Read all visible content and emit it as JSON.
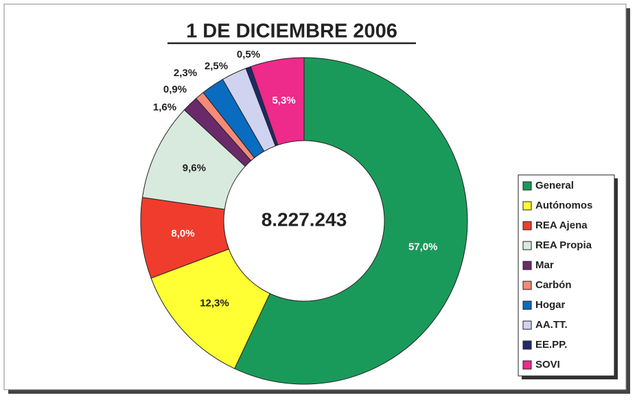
{
  "chart_data": {
    "type": "donut",
    "title": "1 DE DICIEMBRE 2006",
    "center_label": "8.227.243",
    "categories": [
      "General",
      "Autónomos",
      "REA Ajena",
      "REA  Propia",
      "Mar",
      "Carbón",
      "Hogar",
      "AA.TT.",
      "EE.PP.",
      "SOVI"
    ],
    "values": [
      57.0,
      12.3,
      8.0,
      9.6,
      1.6,
      0.9,
      2.3,
      2.5,
      0.5,
      5.3
    ],
    "value_labels": [
      "57,0%",
      "12,3%",
      "8,0%",
      "9,6%",
      "1,6%",
      "0,9%",
      "2,3%",
      "2,5%",
      "0,5%",
      "5,3%"
    ],
    "colors": [
      "#1a9a5a",
      "#ffff33",
      "#f03c2c",
      "#d8eade",
      "#6a2a6a",
      "#f58a78",
      "#0a6cc0",
      "#cfd3f0",
      "#1e2a6a",
      "#ee2a8a"
    ],
    "legend": "right"
  }
}
